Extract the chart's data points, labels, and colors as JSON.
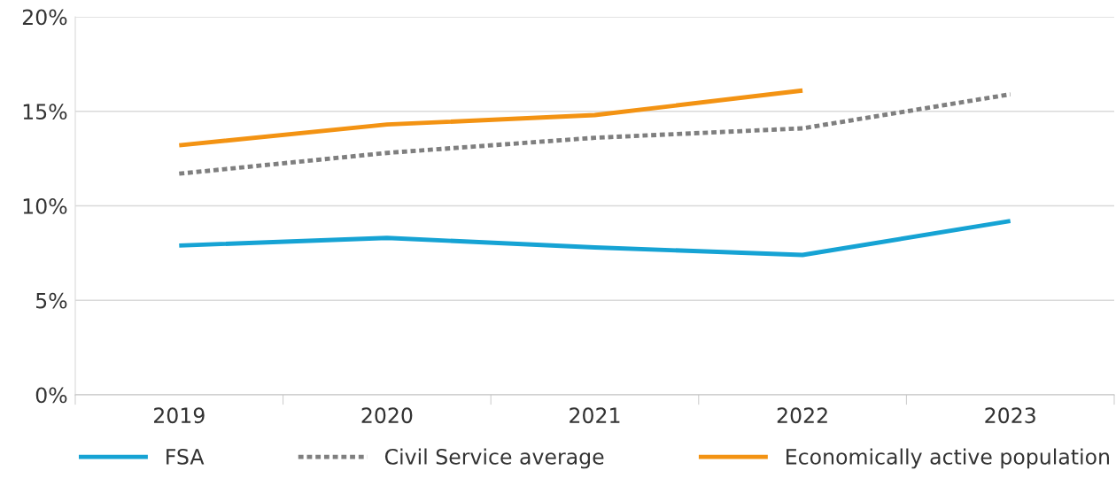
{
  "chart_data": {
    "type": "line",
    "categories": [
      "2019",
      "2020",
      "2021",
      "2022",
      "2023"
    ],
    "series": [
      {
        "name": "FSA",
        "color": "#16a3d4",
        "values": [
          7.9,
          8.3,
          7.8,
          7.4,
          9.2
        ],
        "line_style": "solid"
      },
      {
        "name": "Civil Service average",
        "color": "#7f7f7f",
        "values": [
          11.7,
          12.8,
          13.6,
          14.1,
          15.9
        ],
        "line_style": "dotted"
      },
      {
        "name": "Economically active population",
        "color": "#f39313",
        "values": [
          13.2,
          14.3,
          14.8,
          16.1,
          null
        ],
        "line_style": "solid"
      }
    ],
    "ylim": [
      0,
      20
    ],
    "yticks": [
      {
        "value": 0,
        "label": "0%"
      },
      {
        "value": 5,
        "label": "5%"
      },
      {
        "value": 10,
        "label": "10%"
      },
      {
        "value": 15,
        "label": "15%"
      },
      {
        "value": 20,
        "label": "20%"
      }
    ],
    "grid": "y",
    "legend": "bottom",
    "marker": "none"
  }
}
